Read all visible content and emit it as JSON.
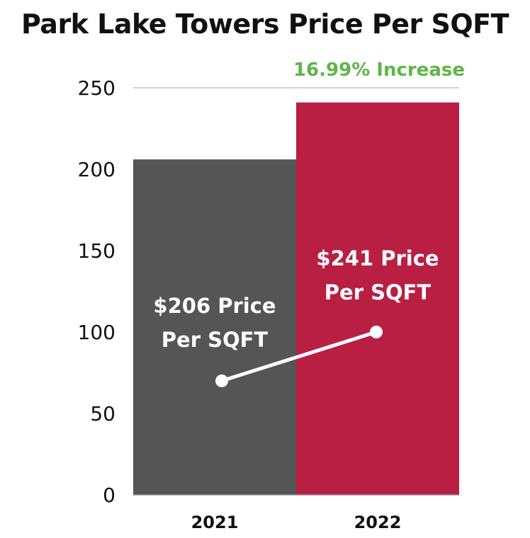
{
  "title": "Park Lake Towers Price Per SQFT",
  "chart_data": {
    "type": "bar",
    "title": "Park Lake Towers Price Per SQFT",
    "categories": [
      "2021",
      "2022"
    ],
    "values": [
      206,
      241
    ],
    "bar_colors": [
      "#555555",
      "#b91f43"
    ],
    "ylim": [
      0,
      250
    ],
    "yticks": [
      "0",
      "50",
      "100",
      "150",
      "200",
      "250"
    ],
    "grid": false,
    "annotation": "16.99% Increase",
    "annotation_color": "#5fb548",
    "bar_labels": [
      [
        "$206 Price",
        "Per SQFT"
      ],
      [
        "$241 Price",
        "Per SQFT"
      ]
    ],
    "trend_line": {
      "y_values": [
        70,
        100
      ],
      "color": "#ffffff"
    }
  }
}
